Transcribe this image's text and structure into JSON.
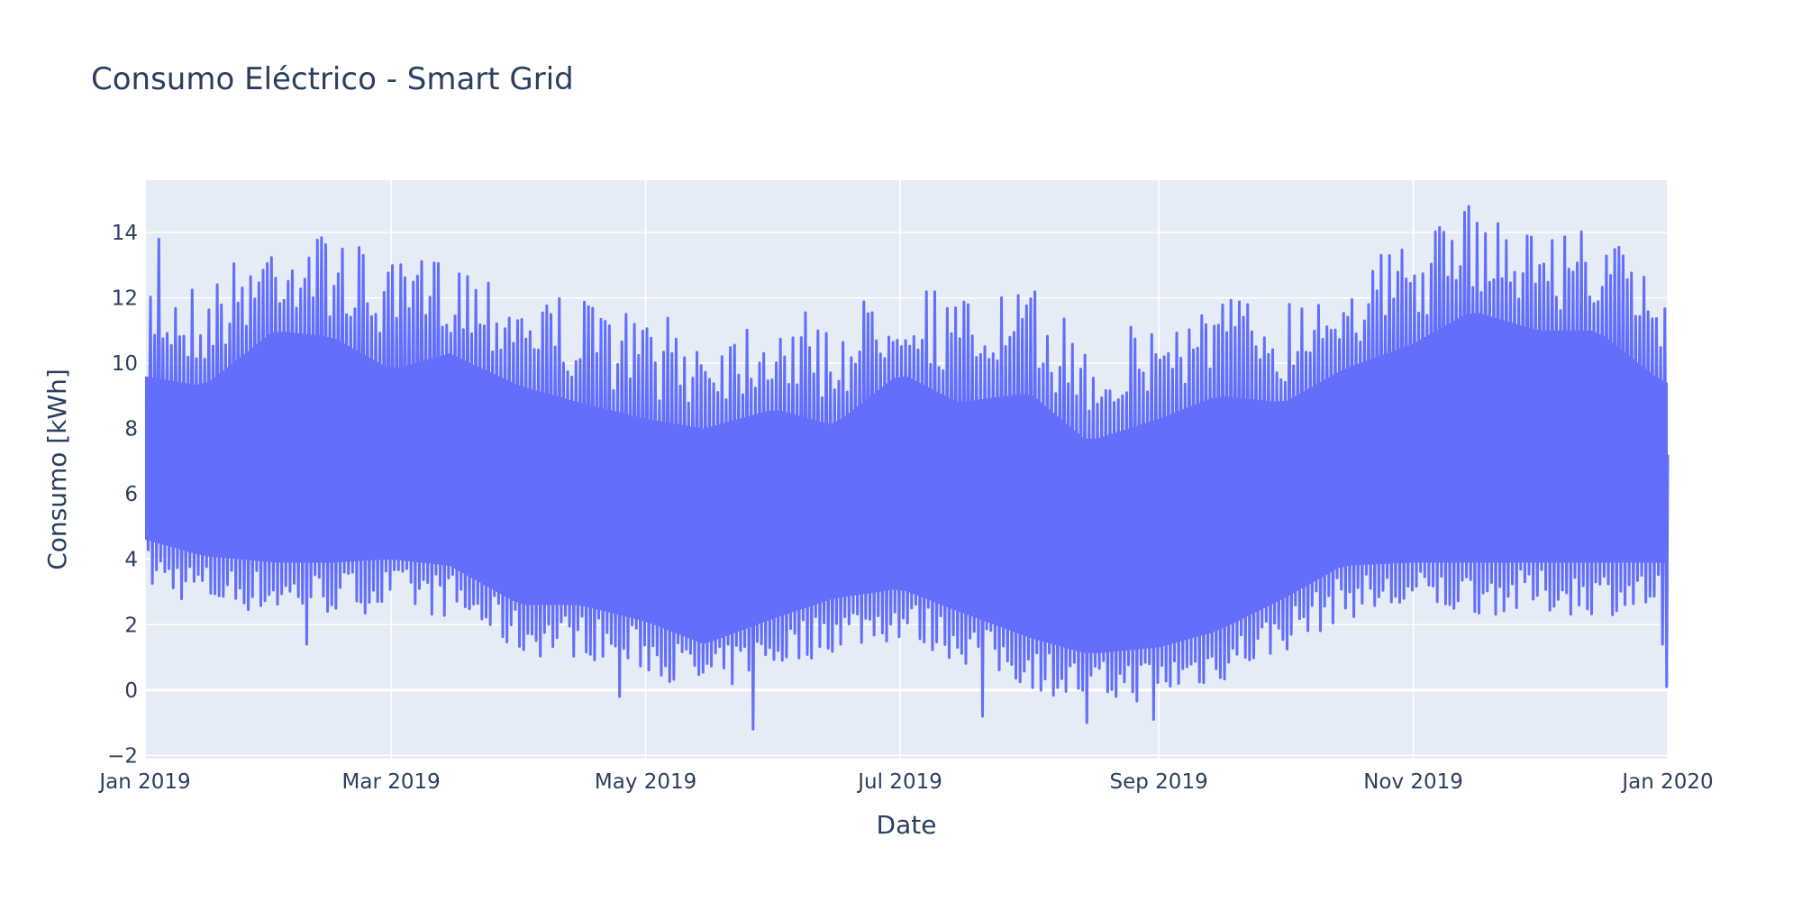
{
  "chart_data": {
    "type": "line",
    "title": "Consumo Eléctrico - Smart Grid",
    "xlabel": "Date",
    "ylabel": "Consumo [kWh]",
    "x_range": [
      "2019-01-01",
      "2020-01-01"
    ],
    "ylim": [
      -2.1,
      15.6
    ],
    "grid": true,
    "legend": "none",
    "x_ticks": [
      {
        "date": "2019-01-01",
        "label": "Jan 2019"
      },
      {
        "date": "2019-03-01",
        "label": "Mar 2019"
      },
      {
        "date": "2019-05-01",
        "label": "May 2019"
      },
      {
        "date": "2019-07-01",
        "label": "Jul 2019"
      },
      {
        "date": "2019-09-01",
        "label": "Sep 2019"
      },
      {
        "date": "2019-11-01",
        "label": "Nov 2019"
      },
      {
        "date": "2020-01-01",
        "label": "Jan 2020"
      }
    ],
    "y_ticks": [
      -2,
      0,
      2,
      4,
      6,
      8,
      10,
      12,
      14
    ],
    "colors": {
      "line": "#636efa",
      "plot_bg": "#e5ecf6",
      "grid": "#ffffff",
      "text": "#2a3f5f"
    },
    "series": [
      {
        "sampling": "hourly",
        "daily_peak_kwh": [
          {
            "date": "2019-01-01",
            "value": 12.8
          },
          {
            "date": "2019-01-15",
            "value": 12.5
          },
          {
            "date": "2019-02-01",
            "value": 14.2
          },
          {
            "date": "2019-02-15",
            "value": 14.0
          },
          {
            "date": "2019-03-01",
            "value": 13.0
          },
          {
            "date": "2019-03-15",
            "value": 13.5
          },
          {
            "date": "2019-04-01",
            "value": 12.5
          },
          {
            "date": "2019-04-15",
            "value": 12.0
          },
          {
            "date": "2019-05-01",
            "value": 11.5
          },
          {
            "date": "2019-05-15",
            "value": 11.2
          },
          {
            "date": "2019-06-01",
            "value": 11.8
          },
          {
            "date": "2019-06-15",
            "value": 11.3
          },
          {
            "date": "2019-07-01",
            "value": 12.9
          },
          {
            "date": "2019-07-15",
            "value": 12.0
          },
          {
            "date": "2019-08-01",
            "value": 12.3
          },
          {
            "date": "2019-08-15",
            "value": 10.8
          },
          {
            "date": "2019-09-01",
            "value": 11.5
          },
          {
            "date": "2019-09-15",
            "value": 12.2
          },
          {
            "date": "2019-10-01",
            "value": 12.0
          },
          {
            "date": "2019-10-15",
            "value": 13.0
          },
          {
            "date": "2019-11-01",
            "value": 13.8
          },
          {
            "date": "2019-11-15",
            "value": 14.8
          },
          {
            "date": "2019-12-01",
            "value": 14.2
          },
          {
            "date": "2019-12-15",
            "value": 14.2
          },
          {
            "date": "2019-12-31",
            "value": 12.6
          }
        ],
        "daily_min_kwh": [
          {
            "date": "2019-01-01",
            "value": 3.0
          },
          {
            "date": "2019-01-15",
            "value": 2.5
          },
          {
            "date": "2019-02-01",
            "value": 2.3
          },
          {
            "date": "2019-02-15",
            "value": 2.3
          },
          {
            "date": "2019-03-01",
            "value": 2.4
          },
          {
            "date": "2019-03-15",
            "value": 2.2
          },
          {
            "date": "2019-04-01",
            "value": 1.0
          },
          {
            "date": "2019-04-15",
            "value": 1.0
          },
          {
            "date": "2019-05-01",
            "value": 0.5
          },
          {
            "date": "2019-05-15",
            "value": -0.2
          },
          {
            "date": "2019-06-01",
            "value": 0.6
          },
          {
            "date": "2019-06-15",
            "value": 1.2
          },
          {
            "date": "2019-07-01",
            "value": 1.5
          },
          {
            "date": "2019-07-15",
            "value": 0.8
          },
          {
            "date": "2019-08-01",
            "value": 0.0
          },
          {
            "date": "2019-08-15",
            "value": -0.5
          },
          {
            "date": "2019-09-01",
            "value": -0.3
          },
          {
            "date": "2019-09-15",
            "value": 0.2
          },
          {
            "date": "2019-10-01",
            "value": 1.2
          },
          {
            "date": "2019-10-15",
            "value": 2.2
          },
          {
            "date": "2019-11-01",
            "value": 2.3
          },
          {
            "date": "2019-11-15",
            "value": 2.3
          },
          {
            "date": "2019-12-01",
            "value": 2.3
          },
          {
            "date": "2019-12-15",
            "value": 2.3
          },
          {
            "date": "2019-12-31",
            "value": 2.3
          }
        ],
        "notable_points_kwh": [
          {
            "date": "2019-01-01",
            "value": 8.8
          },
          {
            "date": "2019-01-04",
            "value": 13.8
          },
          {
            "date": "2019-02-08",
            "value": 1.4
          },
          {
            "date": "2019-04-24",
            "value": -0.2
          },
          {
            "date": "2019-05-26",
            "value": -1.2
          },
          {
            "date": "2019-07-20",
            "value": -0.8
          },
          {
            "date": "2019-08-14",
            "value": -1.0
          },
          {
            "date": "2019-08-30",
            "value": -0.9
          },
          {
            "date": "2019-11-14",
            "value": 14.8
          },
          {
            "date": "2019-12-30",
            "value": 1.4
          },
          {
            "date": "2019-12-31",
            "value": 0.1
          },
          {
            "date": "2020-01-01",
            "value": 7.2
          }
        ]
      }
    ]
  }
}
